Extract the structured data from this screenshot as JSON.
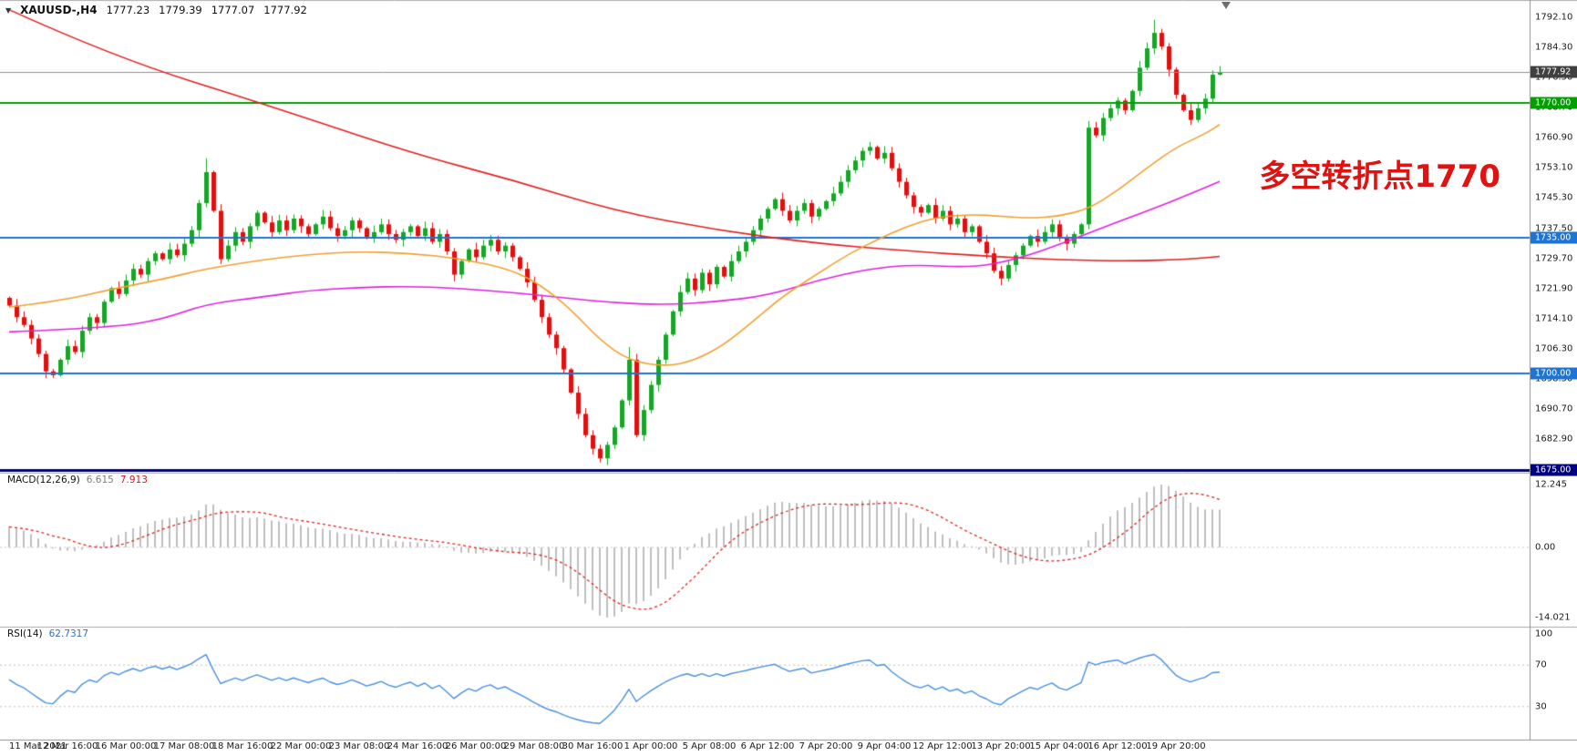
{
  "header": {
    "collapse_arrow": "▼",
    "symbol_timeframe": "XAUUSD-,H4",
    "open": "1777.23",
    "high": "1779.39",
    "low": "1777.07",
    "close": "1777.92"
  },
  "annotation": {
    "text": "多空转折点1770",
    "color": "#e01212"
  },
  "price_axis": {
    "range": {
      "min": 1675.0,
      "max": 1796.5
    },
    "labels": [
      "1792.10",
      "1784.30",
      "1776.50",
      "1768.70",
      "1760.90",
      "1753.10",
      "1745.30",
      "1737.50",
      "1729.70",
      "1721.90",
      "1714.10",
      "1706.30",
      "1698.50",
      "1690.70",
      "1682.90"
    ],
    "values": [
      1792.1,
      1784.3,
      1776.5,
      1768.7,
      1760.9,
      1753.1,
      1745.3,
      1737.5,
      1729.7,
      1721.9,
      1714.1,
      1706.3,
      1698.5,
      1690.7,
      1682.9
    ],
    "badges": [
      {
        "name": "current-price-badge",
        "label": "1777.92",
        "value": 1777.92,
        "bg": "#404040"
      },
      {
        "name": "level-1770-badge",
        "label": "1770.00",
        "value": 1770.0,
        "bg": "#00a000"
      },
      {
        "name": "level-1735-badge",
        "label": "1735.00",
        "value": 1735.0,
        "bg": "#1e74d4"
      },
      {
        "name": "level-1700-badge",
        "label": "1700.00",
        "value": 1700.0,
        "bg": "#1e74d4"
      },
      {
        "name": "level-1675-badge",
        "label": "1675.00",
        "value": 1675.0,
        "bg": "#000080"
      }
    ]
  },
  "hlines": [
    {
      "name": "bid-price-line",
      "value": 1777.92,
      "color": "#909090",
      "width": 1
    },
    {
      "name": "hline-1770",
      "value": 1770.0,
      "color": "#00a000",
      "width": 2
    },
    {
      "name": "hline-1735",
      "value": 1735.0,
      "color": "#1e74d4",
      "width": 2
    },
    {
      "name": "hline-1700",
      "value": 1700.0,
      "color": "#1e74d4",
      "width": 2
    },
    {
      "name": "hline-1675",
      "value": 1675.0,
      "color": "#000080",
      "width": 3
    }
  ],
  "time_axis": {
    "labels": [
      "11 Mar 2021",
      "12 Mar 16:00",
      "16 Mar 00:00",
      "17 Mar 08:00",
      "18 Mar 16:00",
      "22 Mar 00:00",
      "23 Mar 08:00",
      "24 Mar 16:00",
      "26 Mar 00:00",
      "29 Mar 08:00",
      "30 Mar 16:00",
      "1 Apr 00:00",
      "5 Apr 08:00",
      "6 Apr 12:00",
      "7 Apr 20:00",
      "9 Apr 04:00",
      "12 Apr 12:00",
      "13 Apr 20:00",
      "15 Apr 04:00",
      "16 Apr 12:00",
      "19 Apr 20:00"
    ],
    "bars_per_label": 8
  },
  "chart_data": {
    "type": "candlestick",
    "symbol": "XAUUSD",
    "timeframe": "H4",
    "title": "XAUUSD-,H4 1777.23 1779.39 1777.07 1777.92",
    "ylim": [
      1675.0,
      1796.5
    ],
    "bull_color": "#18a428",
    "bear_color": "#e01010",
    "first_open": 1719.5,
    "closes": [
      1717.5,
      1714.5,
      1712.5,
      1709.0,
      1705.0,
      1700.5,
      1699.5,
      1703.5,
      1707.0,
      1705.5,
      1711.0,
      1714.5,
      1713.0,
      1718.5,
      1722.0,
      1720.5,
      1724.0,
      1727.0,
      1725.5,
      1729.0,
      1731.0,
      1729.5,
      1732.0,
      1730.5,
      1733.5,
      1737.0,
      1744.0,
      1752.0,
      1742.0,
      1729.5,
      1733.0,
      1736.5,
      1734.0,
      1738.0,
      1741.5,
      1739.0,
      1736.5,
      1739.5,
      1737.0,
      1740.0,
      1738.0,
      1736.0,
      1738.5,
      1740.5,
      1737.5,
      1735.5,
      1737.0,
      1739.5,
      1737.5,
      1735.0,
      1736.5,
      1738.5,
      1736.0,
      1734.5,
      1736.5,
      1738.0,
      1735.5,
      1737.5,
      1734.0,
      1736.0,
      1731.5,
      1725.5,
      1729.0,
      1732.0,
      1730.0,
      1733.0,
      1734.5,
      1731.5,
      1733.0,
      1730.0,
      1727.0,
      1723.5,
      1719.0,
      1714.5,
      1710.0,
      1706.5,
      1701.0,
      1695.0,
      1689.5,
      1684.0,
      1680.5,
      1678.0,
      1681.5,
      1686.0,
      1693.0,
      1703.5,
      1684.0,
      1690.5,
      1697.0,
      1703.5,
      1710.0,
      1716.0,
      1721.0,
      1724.5,
      1721.5,
      1726.0,
      1723.0,
      1727.5,
      1725.0,
      1729.0,
      1731.5,
      1734.0,
      1737.0,
      1740.0,
      1742.5,
      1745.0,
      1742.0,
      1739.5,
      1742.0,
      1744.0,
      1740.5,
      1742.5,
      1744.5,
      1746.5,
      1749.5,
      1752.5,
      1755.0,
      1757.5,
      1758.5,
      1755.5,
      1757.0,
      1753.0,
      1749.5,
      1746.0,
      1743.0,
      1741.5,
      1743.5,
      1740.0,
      1742.0,
      1738.5,
      1740.0,
      1736.5,
      1738.0,
      1734.0,
      1731.0,
      1726.5,
      1724.5,
      1728.0,
      1730.5,
      1733.0,
      1735.5,
      1734.0,
      1736.5,
      1738.5,
      1735.0,
      1733.5,
      1736.0,
      1738.5,
      1763.5,
      1761.5,
      1766.0,
      1768.5,
      1770.5,
      1768.0,
      1773.0,
      1779.0,
      1784.0,
      1788.0,
      1784.5,
      1778.5,
      1772.0,
      1768.0,
      1765.5,
      1768.5,
      1771.0,
      1777.2,
      1777.9
    ],
    "wick_overrides": [
      {
        "bar": 6,
        "low": 1698.8
      },
      {
        "bar": 27,
        "high": 1755.6
      },
      {
        "bar": 81,
        "low": 1677.0
      },
      {
        "bar": 85,
        "high": 1706.8
      },
      {
        "bar": 118,
        "high": 1759.8
      },
      {
        "bar": 136,
        "low": 1722.8
      },
      {
        "bar": 157,
        "high": 1791.4
      },
      {
        "bar": 166,
        "high": 1779.4,
        "low": 1777.0
      }
    ],
    "moving_averages": [
      {
        "name": "ma-slow",
        "color": "#e02020",
        "points": [
          [
            0,
            1794
          ],
          [
            14,
            1782
          ],
          [
            36,
            1769
          ],
          [
            55,
            1757
          ],
          [
            69,
            1750
          ],
          [
            83,
            1742
          ],
          [
            97,
            1737
          ],
          [
            111,
            1733.5
          ],
          [
            124,
            1731.5
          ],
          [
            134,
            1730.3
          ],
          [
            144,
            1729.3
          ],
          [
            154,
            1729.0
          ],
          [
            162,
            1729.5
          ],
          [
            166,
            1730.2
          ]
        ]
      },
      {
        "name": "ma-mid",
        "color": "#e020e0",
        "points": [
          [
            0,
            1710.7
          ],
          [
            14,
            1711.8
          ],
          [
            21,
            1713.9
          ],
          [
            27,
            1717.9
          ],
          [
            35,
            1719.8
          ],
          [
            41,
            1721.4
          ],
          [
            48,
            1722.2
          ],
          [
            55,
            1722.5
          ],
          [
            62,
            1721.9
          ],
          [
            69,
            1720.9
          ],
          [
            76,
            1719.5
          ],
          [
            83,
            1718.2
          ],
          [
            90,
            1717.7
          ],
          [
            97,
            1718.5
          ],
          [
            104,
            1720.1
          ],
          [
            111,
            1724.1
          ],
          [
            118,
            1727.0
          ],
          [
            124,
            1728.1
          ],
          [
            132,
            1727.3
          ],
          [
            138,
            1729.4
          ],
          [
            145,
            1733.9
          ],
          [
            152,
            1739.2
          ],
          [
            159,
            1744.0
          ],
          [
            166,
            1749.6
          ]
        ]
      },
      {
        "name": "ma-fast",
        "color": "#f0a030",
        "points": [
          [
            0,
            1717.1
          ],
          [
            7,
            1718.7
          ],
          [
            14,
            1721.7
          ],
          [
            21,
            1724.3
          ],
          [
            27,
            1727.0
          ],
          [
            35,
            1729.4
          ],
          [
            41,
            1730.7
          ],
          [
            48,
            1731.5
          ],
          [
            55,
            1731.0
          ],
          [
            62,
            1729.7
          ],
          [
            69,
            1726.7
          ],
          [
            73,
            1722.7
          ],
          [
            77,
            1716.6
          ],
          [
            81,
            1708.6
          ],
          [
            85,
            1703.3
          ],
          [
            90,
            1701.7
          ],
          [
            94,
            1703.3
          ],
          [
            98,
            1707.3
          ],
          [
            102,
            1713.4
          ],
          [
            106,
            1719.8
          ],
          [
            111,
            1725.9
          ],
          [
            115,
            1730.7
          ],
          [
            119,
            1734.5
          ],
          [
            123,
            1737.9
          ],
          [
            127,
            1740.3
          ],
          [
            132,
            1741.1
          ],
          [
            136,
            1740.6
          ],
          [
            140,
            1740.1
          ],
          [
            144,
            1740.6
          ],
          [
            148,
            1742.5
          ],
          [
            152,
            1747.2
          ],
          [
            156,
            1753.1
          ],
          [
            160,
            1758.4
          ],
          [
            164,
            1761.9
          ],
          [
            166,
            1764.3
          ]
        ]
      }
    ],
    "macd": {
      "label": "MACD(12,26,9)",
      "value_main": "6.615",
      "value_signal": "7.913",
      "params": [
        12,
        26,
        9
      ],
      "axis_labels": [
        "12.245",
        "0.00",
        "-14.021"
      ],
      "histogram_color": "#b0b0b0",
      "signal_color": "#e02020"
    },
    "rsi": {
      "label": "RSI(14)",
      "value": "62.7317",
      "period": 14,
      "axis_labels": [
        "100",
        "70",
        "30"
      ],
      "axis_values": [
        100,
        70,
        30
      ],
      "levels": [
        70,
        30
      ],
      "color": "#4a8fdf"
    }
  }
}
